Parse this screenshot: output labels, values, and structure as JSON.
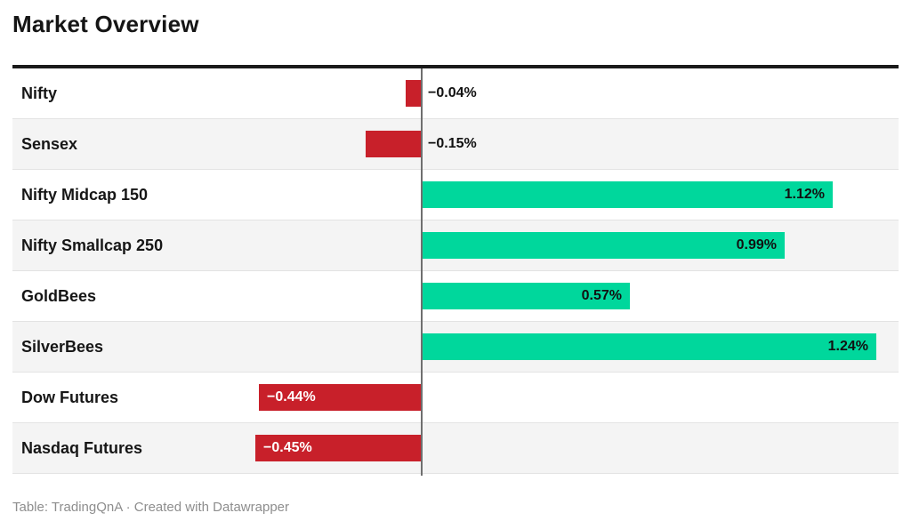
{
  "title": "Market Overview",
  "footer": "Table: TradingQnA · Created with Datawrapper",
  "colors": {
    "positive_bar": "#00d79c",
    "negative_bar": "#c8202a",
    "axis_line": "#6f6f6f",
    "top_rule": "#1a1a1a",
    "row_alt_bg": "#f4f4f4",
    "label_inside_negative": "#ffffff",
    "label_default": "#111111"
  },
  "chart_data": {
    "type": "bar",
    "orientation": "horizontal",
    "title": "Market Overview",
    "xlabel": "",
    "ylabel": "",
    "unit": "%",
    "baseline": 0,
    "grid": false,
    "legend": false,
    "categories": [
      "Nifty",
      "Sensex",
      "Nifty Midcap 150",
      "Nifty Smallcap 250",
      "GoldBees",
      "SilverBees",
      "Dow Futures",
      "Nasdaq Futures"
    ],
    "values": [
      -0.04,
      -0.15,
      1.12,
      0.99,
      0.57,
      1.24,
      -0.44,
      -0.45
    ],
    "labels": [
      "−0.04%",
      "−0.15%",
      "1.12%",
      "0.99%",
      "0.57%",
      "1.24%",
      "−0.44%",
      "−0.45%"
    ],
    "xlim": [
      -1.11,
      1.3
    ]
  }
}
